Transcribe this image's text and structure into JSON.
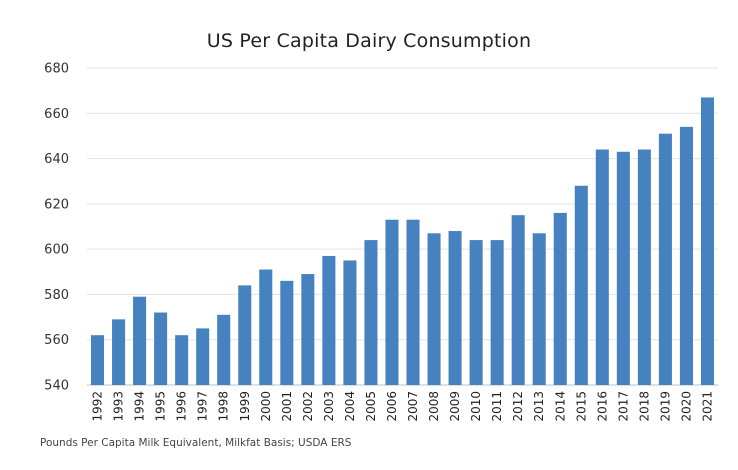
{
  "chart_data": {
    "type": "bar",
    "title": "US Per Capita Dairy Consumption",
    "xlabel": "",
    "ylabel": "",
    "ylim": [
      540,
      680
    ],
    "yticks": [
      540,
      560,
      580,
      600,
      620,
      640,
      660,
      680
    ],
    "grid": true,
    "bar_color": "#4682C0",
    "categories": [
      "1992",
      "1993",
      "1994",
      "1995",
      "1996",
      "1997",
      "1998",
      "1999",
      "2000",
      "2001",
      "2002",
      "2003",
      "2004",
      "2005",
      "2006",
      "2007",
      "2008",
      "2009",
      "2010",
      "2011",
      "2012",
      "2013",
      "2014",
      "2015",
      "2016",
      "2017",
      "2018",
      "2019",
      "2020",
      "2021"
    ],
    "values": [
      562,
      569,
      579,
      572,
      562,
      565,
      571,
      584,
      591,
      586,
      589,
      597,
      595,
      604,
      613,
      613,
      607,
      608,
      604,
      604,
      615,
      607,
      616,
      628,
      644,
      643,
      644,
      651,
      654,
      667
    ],
    "note": "Pounds Per Capita Milk Equivalent, Milkfat Basis; USDA ERS"
  }
}
